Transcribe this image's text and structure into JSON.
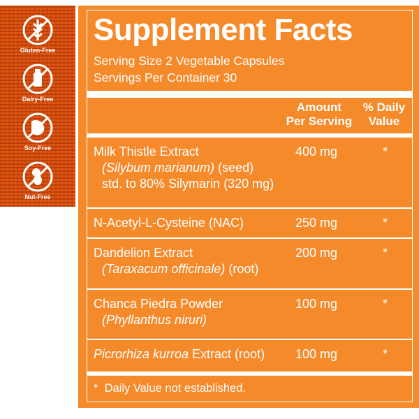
{
  "badges": [
    {
      "label": "Gluten-Free",
      "icon": "wheat-crossed-icon"
    },
    {
      "label": "Dairy-Free",
      "icon": "bottle-crossed-icon"
    },
    {
      "label": "Soy-Free",
      "icon": "soybean-crossed-icon"
    },
    {
      "label": "Nut-Free",
      "icon": "peanut-crossed-icon"
    }
  ],
  "title": "Supplement Facts",
  "serving_size": "Serving Size 2 Vegetable Capsules",
  "servings_per_container": "Servings Per Container 30",
  "headers": {
    "amount_1": "Amount",
    "amount_2": "Per Serving",
    "dv_1": "% Daily",
    "dv_2": "Value"
  },
  "rows": [
    {
      "name": "Milk Thistle Extract",
      "sub_italic": "(Silybum marianum)",
      "sub_rest": " (seed)",
      "sub2": "std. to 80% Silymarin (320 mg)",
      "amount": "400 mg",
      "dv": "*"
    },
    {
      "name": "N-Acetyl-L-Cysteine (NAC)",
      "amount": "250 mg",
      "dv": "*"
    },
    {
      "name": "Dandelion Extract",
      "sub_italic": "(Taraxacum officinale)",
      "sub_rest": " (root)",
      "amount": "200 mg",
      "dv": "*"
    },
    {
      "name": "Chanca Piedra Powder",
      "sub_italic": "(Phyllanthus niruri)",
      "amount": "100 mg",
      "dv": "*"
    },
    {
      "name_italic": "Picrorhiza kurroa",
      "name_rest": " Extract (root)",
      "amount": "100 mg",
      "dv": "*"
    }
  ],
  "footnote": "*  Daily Value not established.",
  "colors": {
    "orange": "#f58a2b",
    "white": "#ffffff"
  }
}
